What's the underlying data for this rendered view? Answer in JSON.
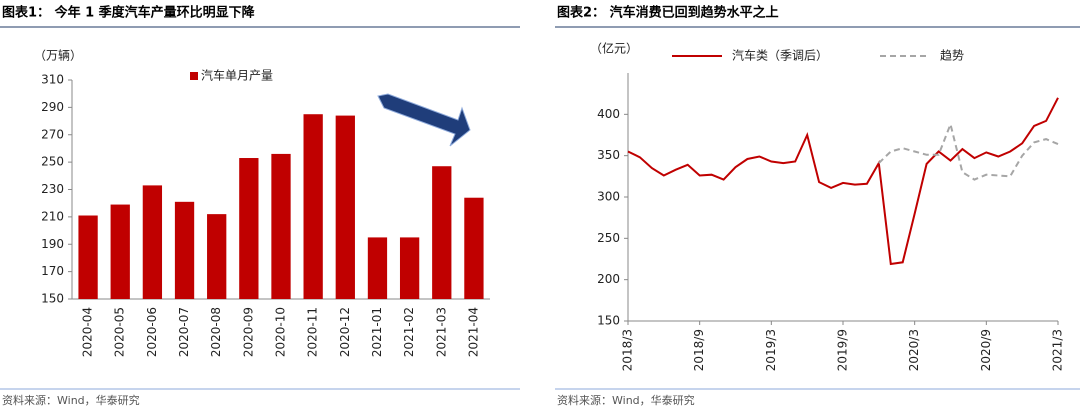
{
  "chart_data": [
    {
      "type": "bar",
      "title": "图表1： 今年 1 季度汽车产量环比明显下降",
      "y_unit": "（万辆）",
      "categories": [
        "2020-04",
        "2020-05",
        "2020-06",
        "2020-07",
        "2020-08",
        "2020-09",
        "2020-10",
        "2020-11",
        "2020-12",
        "2021-01",
        "2021-02",
        "2021-03",
        "2021-04"
      ],
      "series": [
        {
          "name": "汽车单月产量",
          "color": "#c00000",
          "values": [
            211,
            219,
            233,
            221,
            212,
            253,
            256,
            285,
            284,
            195,
            195,
            247,
            224
          ]
        }
      ],
      "ylim": [
        150,
        310
      ],
      "yticks": [
        150,
        170,
        190,
        210,
        230,
        250,
        270,
        290,
        310
      ],
      "source": "资料来源：Wind，华泰研究"
    },
    {
      "type": "line",
      "title": "图表2： 汽车消费已回到趋势水平之上",
      "y_unit": "（亿元）",
      "categories": [
        "2018/3",
        null,
        null,
        null,
        null,
        null,
        "2018/9",
        null,
        null,
        null,
        null,
        null,
        "2019/3",
        null,
        null,
        null,
        null,
        null,
        "2019/9",
        null,
        null,
        null,
        null,
        null,
        "2020/3",
        null,
        null,
        null,
        null,
        null,
        "2020/9",
        null,
        null,
        null,
        null,
        null,
        "2021/3"
      ],
      "series": [
        {
          "name": "汽车类（季调后）",
          "color": "#c00000",
          "dash": false,
          "values": [
            355,
            348,
            335,
            326,
            333,
            339,
            326,
            327,
            321,
            336,
            346,
            349,
            343,
            341,
            343,
            375,
            318,
            311,
            317,
            315,
            316,
            341,
            219,
            221,
            280,
            340,
            355,
            344,
            358,
            347,
            354,
            349,
            355,
            365,
            386,
            392,
            420
          ]
        },
        {
          "name": "趋势",
          "color": "#a6a6a6",
          "dash": true,
          "values": [
            null,
            null,
            null,
            null,
            null,
            null,
            null,
            null,
            null,
            null,
            null,
            null,
            null,
            null,
            null,
            null,
            null,
            null,
            null,
            null,
            null,
            341,
            355,
            359,
            355,
            351,
            351,
            388,
            330,
            321,
            327,
            326,
            325,
            350,
            366,
            370,
            364
          ]
        }
      ],
      "ylim": [
        150,
        450
      ],
      "yticks": [
        150,
        200,
        250,
        300,
        350,
        400
      ],
      "source": "资料来源：Wind，华泰研究"
    }
  ]
}
